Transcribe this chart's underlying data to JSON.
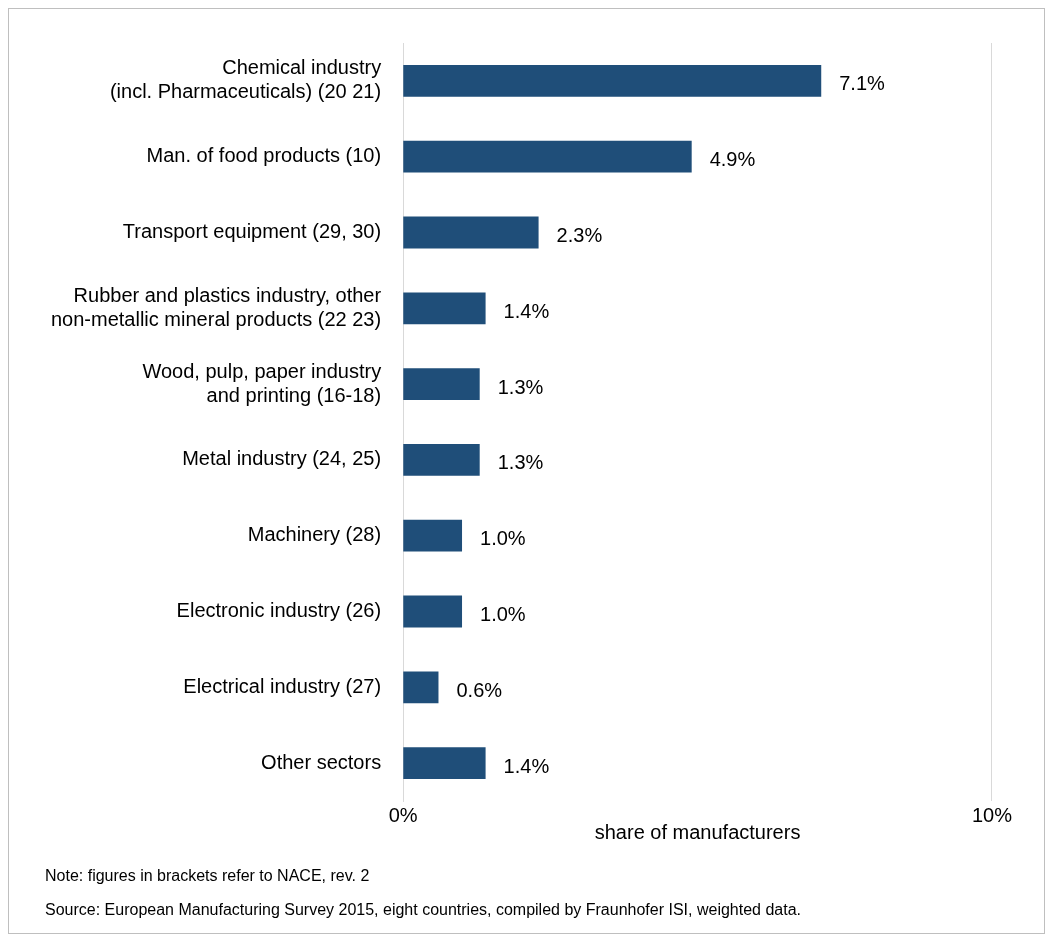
{
  "chart_data": {
    "type": "bar",
    "orientation": "horizontal",
    "categories": [
      "Chemical industry\n(incl. Pharmaceuticals) (20 21)",
      "Man. of food products (10)",
      "Transport equipment (29, 30)",
      "Rubber and plastics industry, other\nnon-metallic mineral products (22 23)",
      "Wood, pulp, paper industry\nand printing (16-18)",
      "Metal industry (24, 25)",
      "Machinery (28)",
      "Electronic industry (26)",
      "Electrical industry (27)",
      "Other sectors"
    ],
    "values": [
      7.1,
      4.9,
      2.3,
      1.4,
      1.3,
      1.3,
      1.0,
      1.0,
      0.6,
      1.4
    ],
    "value_labels": [
      "7.1%",
      "4.9%",
      "2.3%",
      "1.4%",
      "1.3%",
      "1.3%",
      "1.0%",
      "1.0%",
      "0.6%",
      "1.4%"
    ],
    "color": "#1f4e79",
    "xlim": [
      0,
      10
    ],
    "xticks": [
      {
        "value": 0,
        "label": "0%"
      },
      {
        "value": 10,
        "label": "10%"
      }
    ],
    "xlabel": "share of manufacturers",
    "legend": false,
    "annotations": [
      "Note: figures in brackets refer to NACE, rev. 2",
      "Source: European Manufacturing Survey 2015, eight countries, compiled by Fraunhofer ISI, weighted data."
    ]
  }
}
